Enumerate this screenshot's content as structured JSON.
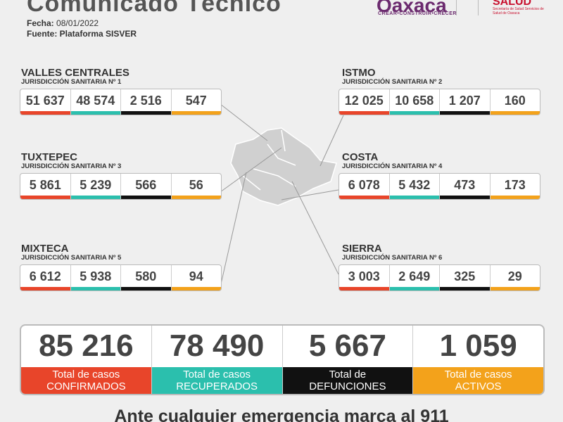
{
  "header": {
    "title": "Comunicado Técnico",
    "fecha_label": "Fecha:",
    "fecha": "08/01/2022",
    "fuente": "Fuente: Plataforma SISVER",
    "logo": "Oaxaca",
    "tagline": "CREAR•CONSTRUIR•CRECER",
    "salud": "SALUD",
    "salud_sub": "Secretaría de Salud Servicios de Salud de Oaxaca"
  },
  "regions": [
    {
      "name": "VALLES CENTRALES",
      "subtitle": "JURISDICCIÓN SANITARIA Nº 1",
      "values": [
        "51 637",
        "48 574",
        "2 516",
        "547"
      ]
    },
    {
      "name": "ISTMO",
      "subtitle": "JURISDICCIÓN SANITARIA Nº 2",
      "values": [
        "12 025",
        "10 658",
        "1 207",
        "160"
      ]
    },
    {
      "name": "TUXTEPEC",
      "subtitle": "JURISDICCIÓN SANITARIA Nº 3",
      "values": [
        "5 861",
        "5 239",
        "566",
        "56"
      ]
    },
    {
      "name": "COSTA",
      "subtitle": "JURISDICCIÓN SANITARIA Nº 4",
      "values": [
        "6 078",
        "5 432",
        "473",
        "173"
      ]
    },
    {
      "name": "MIXTECA",
      "subtitle": "JURISDICCIÓN SANITARIA Nº 5",
      "values": [
        "6 612",
        "5 938",
        "580",
        "94"
      ]
    },
    {
      "name": "SIERRA",
      "subtitle": "JURISDICCIÓN SANITARIA Nº 6",
      "values": [
        "3 003",
        "2 649",
        "325",
        "29"
      ]
    }
  ],
  "totals": [
    {
      "value": "85 216",
      "label_1": "Total de casos",
      "label_2": "CONFIRMADOS"
    },
    {
      "value": "78 490",
      "label_1": "Total de casos",
      "label_2": "RECUPERADOS"
    },
    {
      "value": "5 667",
      "label_1": "Total de",
      "label_2": "DEFUNCIONES"
    },
    {
      "value": "1 059",
      "label_1": "Total de casos",
      "label_2": "ACTIVOS"
    }
  ],
  "footer": "Ante cualquier emergencia marca al 911"
}
